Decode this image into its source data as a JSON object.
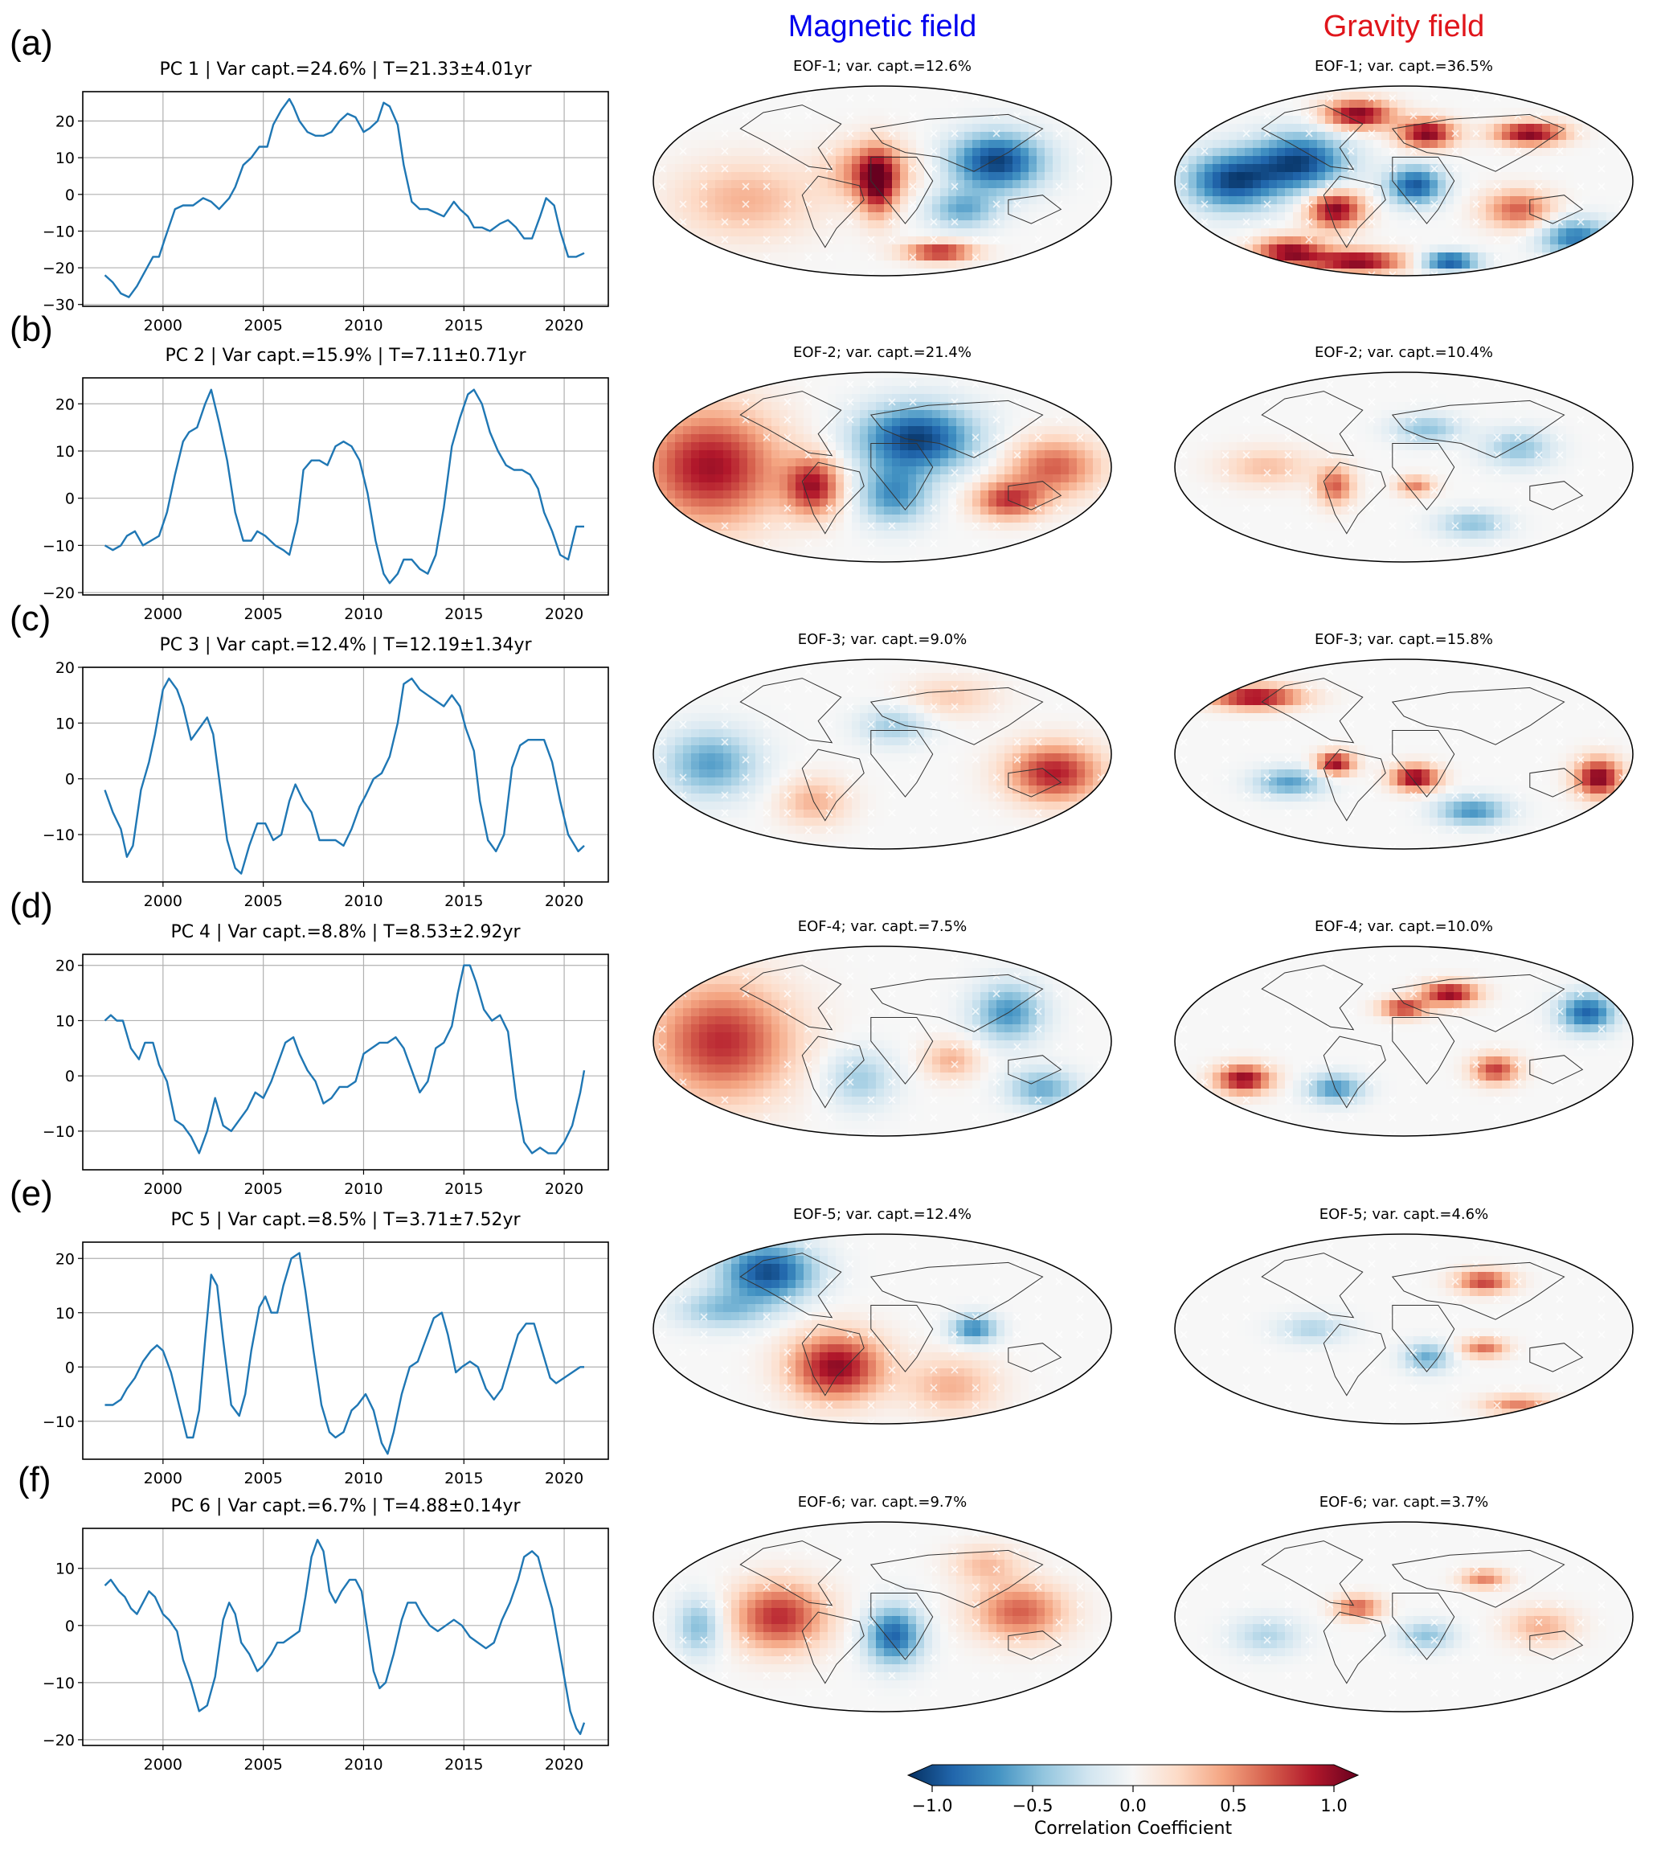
{
  "headers": {
    "magnetic": {
      "label": "Magnetic field",
      "color": "#0000ee"
    },
    "gravity": {
      "label": "Gravity field",
      "color": "#e0151b"
    }
  },
  "line_color": "#1f77b4",
  "rows": [
    {
      "letter": "(a)",
      "pc_title": "PC 1 | Var capt.=24.6% | T=21.33±4.01yr",
      "mag_title": "EOF-1; var. capt.=12.6%",
      "grav_title": "EOF-1; var. capt.=36.5%"
    },
    {
      "letter": "(b)",
      "pc_title": "PC 2 | Var capt.=15.9% | T=7.11±0.71yr",
      "mag_title": "EOF-2; var. capt.=21.4%",
      "grav_title": "EOF-2; var. capt.=10.4%"
    },
    {
      "letter": "(c)",
      "pc_title": "PC 3 | Var capt.=12.4% | T=12.19±1.34yr",
      "mag_title": "EOF-3; var. capt.=9.0%",
      "grav_title": "EOF-3; var. capt.=15.8%"
    },
    {
      "letter": "(d)",
      "pc_title": "PC 4 | Var capt.=8.8% | T=8.53±2.92yr",
      "mag_title": "EOF-4; var. capt.=7.5%",
      "grav_title": "EOF-4; var. capt.=10.0%"
    },
    {
      "letter": "(e)",
      "pc_title": "PC 5 | Var capt.=8.5% | T=3.71±7.52yr",
      "mag_title": "EOF-5; var. capt.=12.4%",
      "grav_title": "EOF-5; var. capt.=4.6%"
    },
    {
      "letter": "(f)",
      "pc_title": "PC 6 | Var capt.=6.7% | T=4.88±0.14yr",
      "mag_title": "EOF-6; var. capt.=9.7%",
      "grav_title": "EOF-6; var. capt.=3.7%"
    }
  ],
  "colorbar": {
    "label": "Correlation Coefficient",
    "ticks": [
      "−1.0",
      "−0.5",
      "0.0",
      "0.5",
      "1.0"
    ],
    "tick_values": [
      -1.0,
      -0.5,
      0.0,
      0.5,
      1.0
    ],
    "range": [
      -1.0,
      1.0
    ],
    "colormap": "RdBu_r",
    "stops": [
      "#053061",
      "#2166ac",
      "#4393c3",
      "#92c5de",
      "#d1e5f0",
      "#f7f7f7",
      "#fddbc7",
      "#f4a582",
      "#d6604d",
      "#b2182b",
      "#67001f"
    ]
  },
  "chart_data": [
    {
      "type": "line",
      "title": "PC 1 | Var capt.=24.6% | T=21.33±4.01yr",
      "xlabel": "",
      "ylabel": "",
      "xlim": [
        1996.0,
        2022.2
      ],
      "ylim": [
        -30.5,
        28.0
      ],
      "xticks": [
        2000,
        2005,
        2010,
        2015,
        2020
      ],
      "yticks": [
        -30,
        -20,
        -10,
        0,
        10,
        20
      ],
      "grid": true,
      "x": [
        1997.1,
        1997.5,
        1997.9,
        1998.3,
        1998.7,
        1999.0,
        1999.5,
        1999.8,
        2000.1,
        2000.6,
        2001.0,
        2001.5,
        2002.0,
        2002.4,
        2002.8,
        2003.3,
        2003.6,
        2004.0,
        2004.4,
        2004.8,
        2005.2,
        2005.5,
        2005.9,
        2006.3,
        2006.5,
        2006.8,
        2007.2,
        2007.6,
        2008.0,
        2008.4,
        2008.8,
        2009.2,
        2009.6,
        2010.0,
        2010.3,
        2010.7,
        2011.0,
        2011.3,
        2011.7,
        2012.0,
        2012.4,
        2012.8,
        2013.2,
        2013.6,
        2014.0,
        2014.5,
        2014.8,
        2015.2,
        2015.5,
        2015.9,
        2016.3,
        2016.8,
        2017.2,
        2017.6,
        2018.0,
        2018.4,
        2018.8,
        2019.1,
        2019.5,
        2019.8,
        2020.2,
        2020.6,
        2021.0
      ],
      "y": [
        -22,
        -24,
        -27,
        -28,
        -25,
        -22,
        -17,
        -17,
        -12,
        -4,
        -3,
        -3,
        -1,
        -2,
        -4,
        -1,
        2,
        8,
        10,
        13,
        13,
        19,
        23,
        26,
        24,
        20,
        17,
        16,
        16,
        17,
        20,
        22,
        21,
        17,
        18,
        20,
        25,
        24,
        19,
        8,
        -2,
        -4,
        -4,
        -5,
        -6,
        -2,
        -4,
        -6,
        -9,
        -9,
        -10,
        -8,
        -7,
        -9,
        -12,
        -12,
        -6,
        -1,
        -3,
        -10,
        -17,
        -17,
        -16
      ]
    },
    {
      "type": "line",
      "title": "PC 2 | Var capt.=15.9% | T=7.11±0.71yr",
      "xlabel": "",
      "ylabel": "",
      "xlim": [
        1996.0,
        2022.2
      ],
      "ylim": [
        -20.5,
        25.5
      ],
      "xticks": [
        2000,
        2005,
        2010,
        2015,
        2020
      ],
      "yticks": [
        -20,
        -10,
        0,
        10,
        20
      ],
      "grid": true,
      "x": [
        1997.1,
        1997.5,
        1997.9,
        1998.2,
        1998.6,
        1999.0,
        1999.4,
        1999.8,
        2000.2,
        2000.6,
        2001.0,
        2001.3,
        2001.7,
        2002.1,
        2002.4,
        2002.8,
        2003.2,
        2003.6,
        2004.0,
        2004.4,
        2004.7,
        2005.1,
        2005.6,
        2006.0,
        2006.3,
        2006.7,
        2007.0,
        2007.4,
        2007.8,
        2008.2,
        2008.6,
        2009.0,
        2009.4,
        2009.8,
        2010.2,
        2010.6,
        2011.0,
        2011.3,
        2011.7,
        2012.0,
        2012.4,
        2012.8,
        2013.2,
        2013.6,
        2014.0,
        2014.4,
        2014.8,
        2015.2,
        2015.5,
        2015.9,
        2016.3,
        2016.7,
        2017.1,
        2017.5,
        2017.9,
        2018.3,
        2018.7,
        2019.0,
        2019.4,
        2019.8,
        2020.2,
        2020.6,
        2021.0
      ],
      "y": [
        -10,
        -11,
        -10,
        -8,
        -7,
        -10,
        -9,
        -8,
        -3,
        5,
        12,
        14,
        15,
        20,
        23,
        16,
        8,
        -3,
        -9,
        -9,
        -7,
        -8,
        -10,
        -11,
        -12,
        -5,
        6,
        8,
        8,
        7,
        11,
        12,
        11,
        8,
        1,
        -9,
        -16,
        -18,
        -16,
        -13,
        -13,
        -15,
        -16,
        -12,
        -2,
        11,
        17,
        22,
        23,
        20,
        14,
        10,
        7,
        6,
        6,
        5,
        2,
        -3,
        -7,
        -12,
        -13,
        -6,
        -6
      ]
    },
    {
      "type": "line",
      "title": "PC 3 | Var capt.=12.4% | T=12.19±1.34yr",
      "xlabel": "",
      "ylabel": "",
      "xlim": [
        1996.0,
        2022.2
      ],
      "ylim": [
        -18.5,
        20.0
      ],
      "xticks": [
        2000,
        2005,
        2010,
        2015,
        2020
      ],
      "yticks": [
        -10,
        0,
        10,
        20
      ],
      "grid": true,
      "x": [
        1997.1,
        1997.5,
        1997.9,
        1998.2,
        1998.5,
        1998.9,
        1999.3,
        1999.6,
        2000.0,
        2000.3,
        2000.7,
        2001.0,
        2001.4,
        2001.8,
        2002.2,
        2002.5,
        2002.8,
        2003.2,
        2003.6,
        2003.9,
        2004.3,
        2004.7,
        2005.1,
        2005.5,
        2005.9,
        2006.3,
        2006.6,
        2007.0,
        2007.4,
        2007.8,
        2008.2,
        2008.6,
        2009.0,
        2009.4,
        2009.8,
        2010.1,
        2010.5,
        2010.9,
        2011.3,
        2011.7,
        2012.0,
        2012.4,
        2012.8,
        2013.2,
        2013.6,
        2014.0,
        2014.4,
        2014.8,
        2015.1,
        2015.5,
        2015.8,
        2016.2,
        2016.6,
        2017.0,
        2017.4,
        2017.8,
        2018.2,
        2018.6,
        2019.0,
        2019.4,
        2019.8,
        2020.2,
        2020.7,
        2021.0
      ],
      "y": [
        -2,
        -6,
        -9,
        -14,
        -12,
        -2,
        3,
        8,
        16,
        18,
        16,
        13,
        7,
        9,
        11,
        8,
        0,
        -11,
        -16,
        -17,
        -12,
        -8,
        -8,
        -11,
        -10,
        -4,
        -1,
        -4,
        -6,
        -11,
        -11,
        -11,
        -12,
        -9,
        -5,
        -3,
        0,
        1,
        4,
        10,
        17,
        18,
        16,
        15,
        14,
        13,
        15,
        13,
        9,
        5,
        -4,
        -11,
        -13,
        -10,
        2,
        6,
        7,
        7,
        7,
        3,
        -4,
        -10,
        -13,
        -12
      ]
    },
    {
      "type": "line",
      "title": "PC 4 | Var capt.=8.8% | T=8.53±2.92yr",
      "xlabel": "",
      "ylabel": "",
      "xlim": [
        1996.0,
        2022.2
      ],
      "ylim": [
        -17.0,
        22.0
      ],
      "xticks": [
        2000,
        2005,
        2010,
        2015,
        2020
      ],
      "yticks": [
        -10,
        0,
        10,
        20
      ],
      "grid": true,
      "x": [
        1997.1,
        1997.4,
        1997.7,
        1998.0,
        1998.4,
        1998.8,
        1999.1,
        1999.5,
        1999.8,
        2000.2,
        2000.6,
        2001.0,
        2001.4,
        2001.8,
        2002.2,
        2002.6,
        2003.0,
        2003.4,
        2003.8,
        2004.2,
        2004.6,
        2005.0,
        2005.4,
        2005.8,
        2006.1,
        2006.5,
        2006.8,
        2007.2,
        2007.6,
        2008.0,
        2008.4,
        2008.8,
        2009.2,
        2009.6,
        2010.0,
        2010.4,
        2010.8,
        2011.2,
        2011.6,
        2012.0,
        2012.4,
        2012.8,
        2013.2,
        2013.6,
        2014.0,
        2014.4,
        2014.7,
        2015.0,
        2015.3,
        2015.6,
        2016.0,
        2016.4,
        2016.8,
        2017.2,
        2017.6,
        2018.0,
        2018.4,
        2018.8,
        2019.2,
        2019.6,
        2020.0,
        2020.4,
        2020.8,
        2021.0
      ],
      "y": [
        10,
        11,
        10,
        10,
        5,
        3,
        6,
        6,
        2,
        -1,
        -8,
        -9,
        -11,
        -14,
        -10,
        -4,
        -9,
        -10,
        -8,
        -6,
        -3,
        -4,
        -1,
        3,
        6,
        7,
        4,
        1,
        -1,
        -5,
        -4,
        -2,
        -2,
        -1,
        4,
        5,
        6,
        6,
        7,
        5,
        1,
        -3,
        -1,
        5,
        6,
        9,
        15,
        20,
        20,
        17,
        12,
        10,
        11,
        8,
        -4,
        -12,
        -14,
        -13,
        -14,
        -14,
        -12,
        -9,
        -3,
        1
      ]
    },
    {
      "type": "line",
      "title": "PC 5 | Var capt.=8.5% | T=3.71±7.52yr",
      "xlabel": "",
      "ylabel": "",
      "xlim": [
        1996.0,
        2022.2
      ],
      "ylim": [
        -17.0,
        23.0
      ],
      "xticks": [
        2000,
        2005,
        2010,
        2015,
        2020
      ],
      "yticks": [
        -10,
        0,
        10,
        20
      ],
      "grid": true,
      "x": [
        1997.1,
        1997.5,
        1997.9,
        1998.2,
        1998.6,
        1999.0,
        1999.4,
        1999.7,
        2000.0,
        2000.4,
        2000.8,
        2001.2,
        2001.5,
        2001.8,
        2002.1,
        2002.4,
        2002.7,
        2003.0,
        2003.4,
        2003.8,
        2004.1,
        2004.4,
        2004.8,
        2005.1,
        2005.4,
        2005.7,
        2006.0,
        2006.4,
        2006.8,
        2007.1,
        2007.5,
        2007.9,
        2008.3,
        2008.6,
        2009.0,
        2009.4,
        2009.7,
        2010.1,
        2010.5,
        2010.9,
        2011.2,
        2011.5,
        2011.9,
        2012.3,
        2012.7,
        2013.1,
        2013.5,
        2013.9,
        2014.2,
        2014.6,
        2014.9,
        2015.3,
        2015.7,
        2016.1,
        2016.5,
        2016.9,
        2017.3,
        2017.7,
        2018.1,
        2018.5,
        2018.9,
        2019.3,
        2019.6,
        2020.0,
        2020.4,
        2020.8,
        2021.0
      ],
      "y": [
        -7,
        -7,
        -6,
        -4,
        -2,
        1,
        3,
        4,
        3,
        -1,
        -7,
        -13,
        -13,
        -8,
        5,
        17,
        15,
        5,
        -7,
        -9,
        -5,
        3,
        11,
        13,
        10,
        10,
        15,
        20,
        21,
        14,
        3,
        -7,
        -12,
        -13,
        -12,
        -8,
        -7,
        -5,
        -8,
        -14,
        -16,
        -12,
        -5,
        0,
        1,
        5,
        9,
        10,
        6,
        -1,
        0,
        1,
        0,
        -4,
        -6,
        -4,
        1,
        6,
        8,
        8,
        3,
        -2,
        -3,
        -2,
        -1,
        0,
        0
      ]
    },
    {
      "type": "line",
      "title": "PC 6 | Var capt.=6.7% | T=4.88±0.14yr",
      "xlabel": "",
      "ylabel": "",
      "xlim": [
        1996.0,
        2022.2
      ],
      "ylim": [
        -21.0,
        17.0
      ],
      "xticks": [
        2000,
        2005,
        2010,
        2015,
        2020
      ],
      "yticks": [
        -20,
        -10,
        0,
        10
      ],
      "grid": true,
      "x": [
        1997.1,
        1997.4,
        1997.8,
        1998.1,
        1998.4,
        1998.7,
        1999.0,
        1999.3,
        1999.6,
        2000.0,
        2000.3,
        2000.7,
        2001.0,
        2001.4,
        2001.8,
        2002.2,
        2002.6,
        2003.0,
        2003.3,
        2003.6,
        2003.9,
        2004.3,
        2004.7,
        2005.0,
        2005.4,
        2005.7,
        2006.0,
        2006.4,
        2006.8,
        2007.1,
        2007.4,
        2007.7,
        2008.0,
        2008.3,
        2008.6,
        2008.9,
        2009.3,
        2009.6,
        2009.9,
        2010.2,
        2010.5,
        2010.8,
        2011.1,
        2011.5,
        2011.9,
        2012.2,
        2012.6,
        2012.9,
        2013.3,
        2013.7,
        2014.1,
        2014.5,
        2014.9,
        2015.3,
        2015.7,
        2016.1,
        2016.5,
        2016.9,
        2017.3,
        2017.7,
        2018.0,
        2018.4,
        2018.7,
        2019.0,
        2019.4,
        2019.7,
        2020.0,
        2020.3,
        2020.6,
        2020.8,
        2021.0
      ],
      "y": [
        7,
        8,
        6,
        5,
        3,
        2,
        4,
        6,
        5,
        2,
        1,
        -1,
        -6,
        -10,
        -15,
        -14,
        -9,
        1,
        4,
        2,
        -3,
        -5,
        -8,
        -7,
        -5,
        -3,
        -3,
        -2,
        -1,
        5,
        12,
        15,
        13,
        6,
        4,
        6,
        8,
        8,
        6,
        -1,
        -8,
        -11,
        -10,
        -5,
        1,
        4,
        4,
        2,
        0,
        -1,
        0,
        1,
        0,
        -2,
        -3,
        -4,
        -3,
        1,
        4,
        8,
        12,
        13,
        12,
        8,
        3,
        -3,
        -9,
        -15,
        -18,
        -19,
        -17
      ]
    },
    {
      "type": "heatmap",
      "title": "Magnetic field / Gravity field EOF correlation maps",
      "xlabel": "",
      "ylabel": "",
      "colorbar_label": "Correlation Coefficient",
      "colorbar_range": [
        -1.0,
        1.0
      ],
      "colorbar_ticks": [
        -1.0,
        -0.5,
        0.0,
        0.5,
        1.0
      ],
      "panels": [
        "EOF-1; var. capt.=12.6%",
        "EOF-1; var. capt.=36.5%",
        "EOF-2; var. capt.=21.4%",
        "EOF-2; var. capt.=10.4%",
        "EOF-3; var. capt.=9.0%",
        "EOF-3; var. capt.=15.8%",
        "EOF-4; var. capt.=7.5%",
        "EOF-4; var. capt.=10.0%",
        "EOF-5; var. capt.=12.4%",
        "EOF-5; var. capt.=4.6%",
        "EOF-6; var. capt.=9.7%",
        "EOF-6; var. capt.=3.7%"
      ]
    }
  ]
}
